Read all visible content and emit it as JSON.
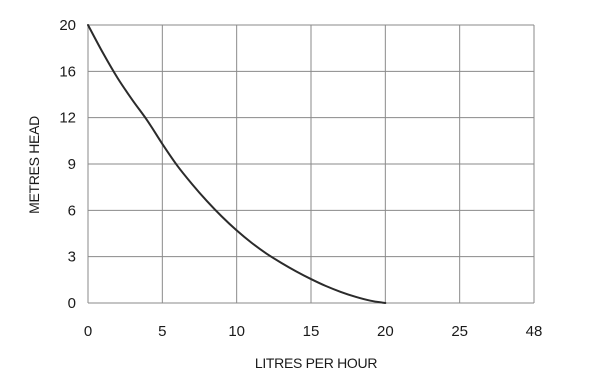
{
  "chart_data": {
    "type": "line",
    "xlabel": "LITRES PER HOUR",
    "ylabel": "METRES HEAD",
    "x_tick_labels": [
      "0",
      "5",
      "10",
      "15",
      "20",
      "25",
      "48"
    ],
    "y_tick_labels": [
      "0",
      "3",
      "6",
      "9",
      "12",
      "16",
      "20"
    ],
    "grid": true,
    "series": [
      {
        "x": [
          0,
          1,
          2,
          3,
          4,
          5,
          6,
          7,
          8,
          9,
          10,
          11,
          12,
          13,
          14,
          15,
          16,
          17,
          18,
          19,
          20
        ],
        "y": [
          20,
          17.6,
          15.4,
          13.5,
          11.8,
          10.3,
          8.9,
          7.7,
          6.6,
          5.6,
          4.7,
          3.9,
          3.2,
          2.6,
          2.05,
          1.55,
          1.1,
          0.72,
          0.4,
          0.15,
          0
        ]
      }
    ]
  }
}
